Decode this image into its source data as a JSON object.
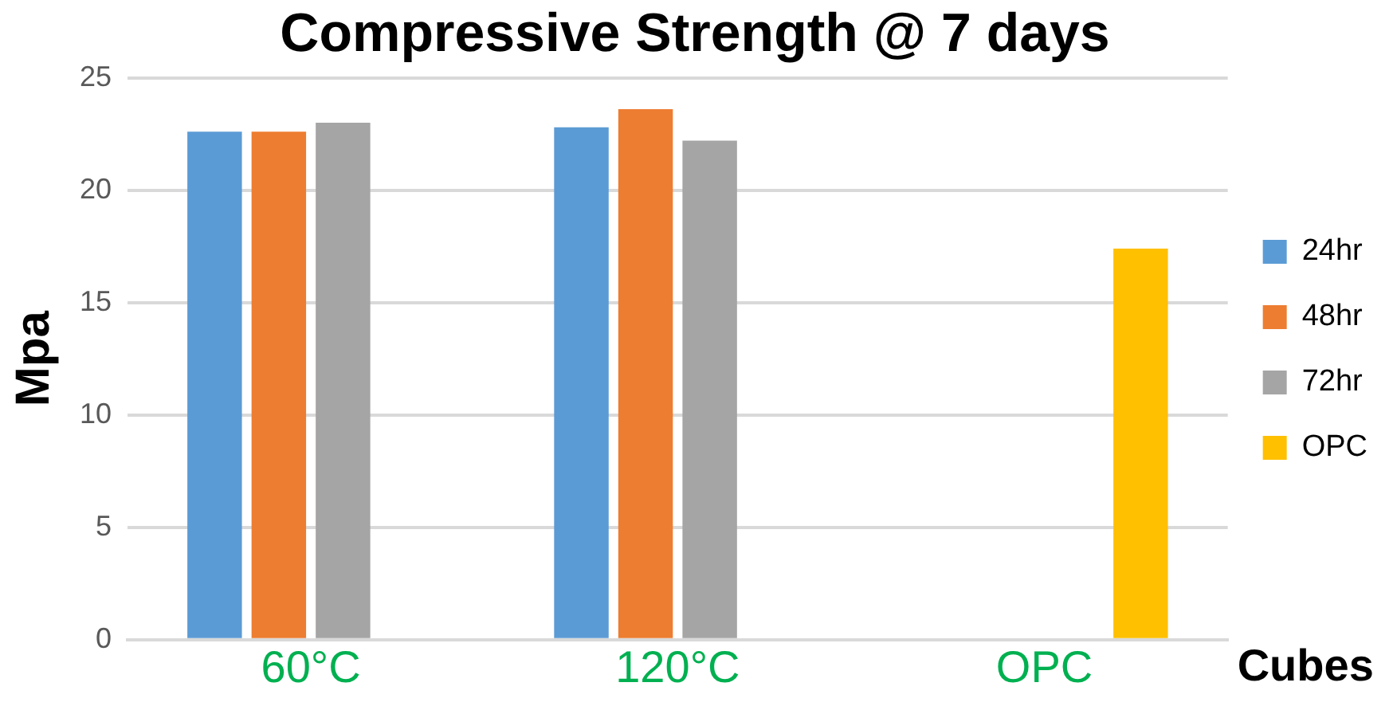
{
  "chart_data": {
    "type": "bar",
    "title": "Compressive Strength @ 7 days",
    "xlabel": "Cubes",
    "ylabel": "Mpa",
    "categories": [
      "60°C",
      "120°C",
      "OPC"
    ],
    "series": [
      {
        "name": "24hr",
        "color": "#5b9bd5",
        "values": [
          22.6,
          22.8,
          null
        ]
      },
      {
        "name": "48hr",
        "color": "#ed7d31",
        "values": [
          22.6,
          23.6,
          null
        ]
      },
      {
        "name": "72hr",
        "color": "#a5a5a5",
        "values": [
          23.0,
          22.2,
          null
        ]
      },
      {
        "name": "OPC",
        "color": "#ffc000",
        "values": [
          null,
          null,
          17.4
        ]
      }
    ],
    "ylim": [
      0,
      25
    ],
    "yticks": [
      0,
      5,
      10,
      15,
      20,
      25
    ],
    "grid": "y",
    "legend": "right"
  }
}
